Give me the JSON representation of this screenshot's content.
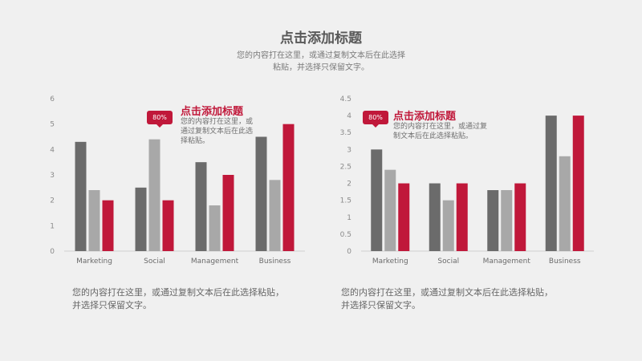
{
  "header": {
    "title": "点击添加标题",
    "subtitle_line1": "您的内容打在这里，或通过复制文本后在此选择",
    "subtitle_line2": "粘贴，并选择只保留文字。"
  },
  "colors": {
    "dark": "#6b6b6b",
    "gray": "#a8a8a8",
    "red": "#c0183a",
    "axis": "#cfcfcf"
  },
  "chart_data": [
    {
      "type": "bar",
      "categories": [
        "Marketing",
        "Social",
        "Management",
        "Business"
      ],
      "series": [
        {
          "values": [
            4.3,
            2.5,
            3.5,
            4.5
          ]
        },
        {
          "values": [
            2.4,
            4.4,
            1.8,
            2.8
          ]
        },
        {
          "values": [
            2.0,
            2.0,
            3.0,
            5.0
          ]
        }
      ],
      "ylim": [
        0,
        6
      ],
      "yticks": [
        "0",
        "1",
        "2",
        "3",
        "4",
        "5",
        "6"
      ],
      "annotation": {
        "badge": "80%",
        "title": "点击添加标题",
        "text_line1": "您的内容打在这里，或",
        "text_line2": "通过复制文本后在此选",
        "text_line3": "择粘贴。"
      },
      "caption_line1": "您的内容打在这里，或通过复制文本后在此选择粘贴，",
      "caption_line2": "并选择只保留文字。"
    },
    {
      "type": "bar",
      "categories": [
        "Marketing",
        "Social",
        "Management",
        "Business"
      ],
      "series": [
        {
          "values": [
            3.0,
            2.0,
            1.8,
            4.0
          ]
        },
        {
          "values": [
            2.4,
            1.5,
            1.8,
            2.8
          ]
        },
        {
          "values": [
            2.0,
            2.0,
            2.0,
            4.0
          ]
        }
      ],
      "ylim": [
        0,
        4.5
      ],
      "yticks": [
        "0",
        "0.5",
        "1",
        "1.5",
        "2",
        "2.5",
        "3",
        "3.5",
        "4",
        "4.5"
      ],
      "annotation": {
        "badge": "80%",
        "title": "点击添加标题",
        "text_line1": "您的内容打在这里，或通过复",
        "text_line2": "制文本后在此选择粘贴。"
      },
      "caption_line1": "您的内容打在这里，或通过复制文本后在此选择粘贴，",
      "caption_line2": "并选择只保留文字。"
    }
  ]
}
